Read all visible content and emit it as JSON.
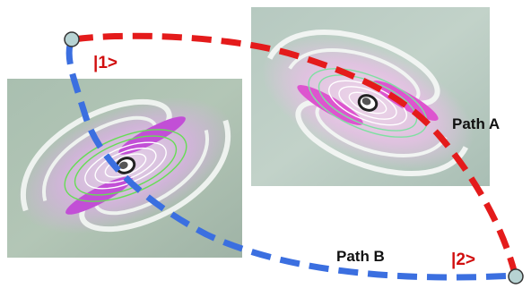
{
  "labels": {
    "state_1": "|1>",
    "state_2": "|2>",
    "path_a": "Path A",
    "path_b": "Path B"
  },
  "colors": {
    "path_a": "#e41b1b",
    "path_b": "#3b6fe0",
    "node_fill": "#b7d3d3",
    "node_stroke": "#333333",
    "panel_bg": "#9fb8a9"
  },
  "panels": [
    {
      "name": "panel-left-vortex"
    },
    {
      "name": "panel-right-vortex"
    }
  ]
}
